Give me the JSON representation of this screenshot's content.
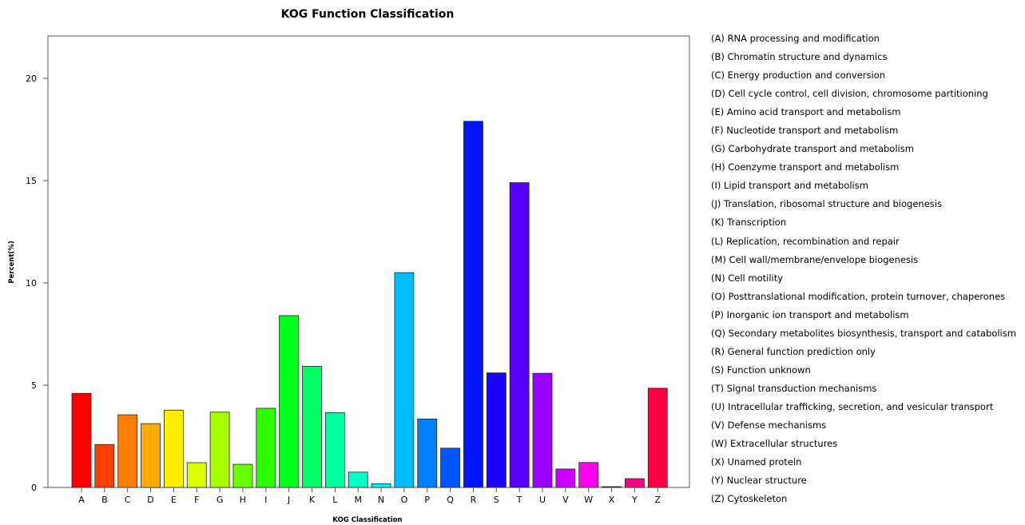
{
  "chart_data": {
    "type": "bar",
    "title": "KOG Function Classification",
    "xlabel": "KOG Classification",
    "ylabel": "Percent(%)",
    "ylim": [
      0,
      22
    ],
    "yticks": [
      "0",
      "5",
      "10",
      "15",
      "20"
    ],
    "grid": false,
    "legend_position": "right",
    "categories": [
      "A",
      "B",
      "C",
      "D",
      "E",
      "F",
      "G",
      "H",
      "I",
      "J",
      "K",
      "L",
      "M",
      "N",
      "O",
      "P",
      "Q",
      "R",
      "S",
      "T",
      "U",
      "V",
      "W",
      "X",
      "Y",
      "Z"
    ],
    "values": [
      4.6,
      2.1,
      3.55,
      3.12,
      3.78,
      1.21,
      3.68,
      1.13,
      3.87,
      8.4,
      5.92,
      3.66,
      0.75,
      0.18,
      10.5,
      3.35,
      1.92,
      17.9,
      5.6,
      14.9,
      5.58,
      0.9,
      1.22,
      0.04,
      0.43,
      4.85
    ],
    "colors": [
      "#FF0000",
      "#FF4000",
      "#FF8000",
      "#FFAA00",
      "#FFEE00",
      "#D9FF00",
      "#A6FF00",
      "#6AFF00",
      "#2BFF00",
      "#00FF1A",
      "#00FF66",
      "#00FFA0",
      "#00FFCC",
      "#00F2FF",
      "#00BFFF",
      "#0080FF",
      "#0055FF",
      "#0015FF",
      "#1A00FF",
      "#5500FF",
      "#9900FF",
      "#CC00FF",
      "#FF00EE",
      "#FF00CC",
      "#FF0080",
      "#FF0044"
    ],
    "legend": [
      "(A) RNA processing and modification",
      "(B) Chromatin structure and dynamics",
      "(C) Energy production and conversion",
      "(D) Cell cycle control, cell division, chromosome partitioning",
      "(E) Amino acid transport and metabolism",
      "(F) Nucleotide transport and metabolism",
      "(G) Carbohydrate transport and metabolism",
      "(H) Coenzyme transport and metabolism",
      "(I) Lipid transport and metabolism",
      "(J) Translation, ribosomal structure and biogenesis",
      "(K) Transcription",
      "(L) Replication, recombination and repair",
      "(M) Cell wall/membrane/envelope biogenesis",
      "(N) Cell motility",
      "(O) Posttranslational modification, protein turnover, chaperones",
      "(P) Inorganic ion transport and metabolism",
      "(Q) Secondary metabolites biosynthesis, transport and catabolism",
      "(R) General function prediction only",
      "(S) Function unknown",
      "(T) Signal transduction mechanisms",
      "(U) Intracellular trafficking, secretion, and vesicular transport",
      "(V) Defense mechanisms",
      "(W) Extracellular structures",
      "(X) Unamed protein",
      "(Y) Nuclear structure",
      "(Z) Cytoskeleton"
    ]
  }
}
